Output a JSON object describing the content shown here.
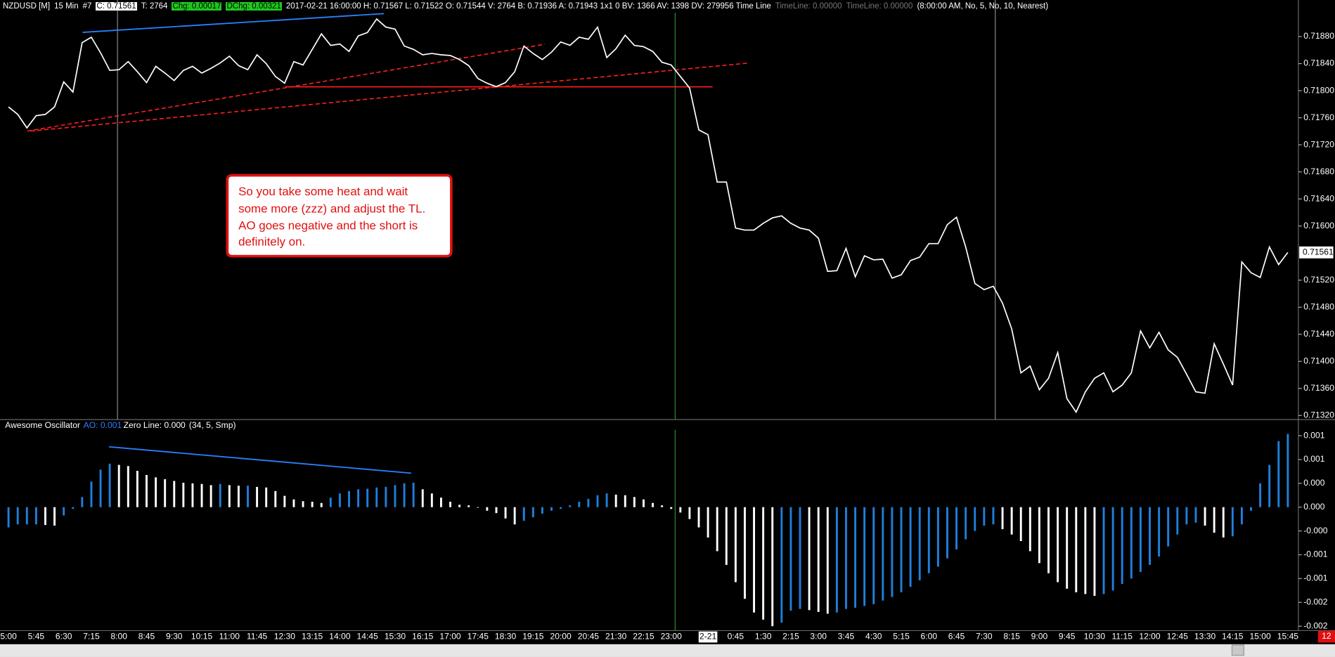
{
  "header": [
    "NZDUSD [M]",
    "15 Min",
    "#7",
    "C: 0.71561",
    "T: 2764",
    "Chg: 0.00017",
    "DChg: 0.00321",
    "2017-02-21 16:00:00 H: 0.71567 L: 0.71522 O: 0.71544 V: 2764 B: 0.71936 A: 0.71943 1x1 0 BV: 1366 AV: 1398 DV: 279956 Time Line",
    "TimeLine: 0.00000",
    "TimeLine: 0.00000",
    "(8:00:00 AM, No, 5, No, 10, Nearest)"
  ],
  "annotation": {
    "lines": [
      "So you take some heat and wait",
      "some more (zzz) and adjust the TL.",
      "AO goes negative and the short is",
      "definitely on."
    ]
  },
  "corner_label": "12",
  "chart_data": [
    {
      "type": "line",
      "color": "#ffffff",
      "categories": [
        "5:00",
        null,
        null,
        "5:45",
        null,
        null,
        "6:30",
        null,
        null,
        "7:15",
        null,
        null,
        "8:00",
        null,
        null,
        "8:45",
        null,
        null,
        "9:30",
        null,
        null,
        "10:15",
        null,
        null,
        "11:00",
        null,
        null,
        "11:45",
        null,
        null,
        "12:30",
        null,
        null,
        "13:15",
        null,
        null,
        "14:00",
        null,
        null,
        "14:45",
        null,
        null,
        "15:30",
        null,
        null,
        "16:15",
        null,
        null,
        "17:00",
        null,
        null,
        "17:45",
        null,
        null,
        "18:30",
        null,
        null,
        "19:15",
        null,
        null,
        "20:00",
        null,
        null,
        "20:45",
        null,
        null,
        "21:30",
        null,
        null,
        "22:15",
        null,
        null,
        "23:00",
        null,
        null,
        null,
        "2-21",
        null,
        null,
        "0:45",
        null,
        null,
        "1:30",
        null,
        null,
        "2:15",
        null,
        null,
        "3:00",
        null,
        null,
        "3:45",
        null,
        null,
        "4:30",
        null,
        null,
        "5:15",
        null,
        null,
        "6:00",
        null,
        null,
        "6:45",
        null,
        null,
        "7:30",
        null,
        null,
        "8:15",
        null,
        null,
        "9:00",
        null,
        null,
        "9:45",
        null,
        null,
        "10:30",
        null,
        null,
        "11:15",
        null,
        null,
        "12:00",
        null,
        null,
        "12:45",
        null,
        null,
        "13:30",
        null,
        null,
        "14:15",
        null,
        null,
        "15:00",
        null,
        null,
        "15:45"
      ],
      "values": [
        0.71776,
        0.71765,
        0.71745,
        0.71763,
        0.71765,
        0.71776,
        0.71813,
        0.71798,
        0.71871,
        0.71879,
        0.71856,
        0.7183,
        0.71831,
        0.71843,
        0.71828,
        0.71812,
        0.71836,
        0.71826,
        0.71815,
        0.7183,
        0.71836,
        0.71826,
        0.71833,
        0.71841,
        0.71851,
        0.71837,
        0.71831,
        0.71853,
        0.7184,
        0.71821,
        0.71811,
        0.71843,
        0.71838,
        0.71861,
        0.71884,
        0.71867,
        0.71869,
        0.71858,
        0.71881,
        0.71886,
        0.71906,
        0.71894,
        0.71891,
        0.71866,
        0.71861,
        0.71853,
        0.71855,
        0.71853,
        0.71852,
        0.71846,
        0.71837,
        0.71818,
        0.71811,
        0.71806,
        0.71812,
        0.71828,
        0.71866,
        0.71855,
        0.71846,
        0.71857,
        0.71872,
        0.71867,
        0.71879,
        0.71876,
        0.71894,
        0.71849,
        0.71862,
        0.71882,
        0.71867,
        0.71865,
        0.71858,
        0.71842,
        0.71838,
        0.71821,
        0.71804,
        0.71742,
        0.71735,
        0.71665,
        0.71665,
        0.71597,
        0.71594,
        0.71594,
        0.71604,
        0.71612,
        0.71615,
        0.71604,
        0.71597,
        0.71594,
        0.71582,
        0.71533,
        0.71534,
        0.71567,
        0.71525,
        0.71556,
        0.7155,
        0.71551,
        0.71523,
        0.71528,
        0.71549,
        0.71554,
        0.71574,
        0.71574,
        0.71602,
        0.71613,
        0.71569,
        0.71515,
        0.71506,
        0.71511,
        0.71486,
        0.71448,
        0.71383,
        0.71393,
        0.71358,
        0.71375,
        0.71413,
        0.71345,
        0.71325,
        0.71355,
        0.71375,
        0.71383,
        0.71355,
        0.71365,
        0.71383,
        0.71445,
        0.7142,
        0.71443,
        0.71417,
        0.71406,
        0.71381,
        0.71355,
        0.71353,
        0.71426,
        0.71396,
        0.71365,
        0.71547,
        0.71531,
        0.71524,
        0.71569,
        0.71543,
        0.71561
      ],
      "ylim": [
        0.71314,
        0.71934
      ],
      "yticks": [
        {
          "value": 0.7188,
          "label": "0.71880"
        },
        {
          "value": 0.7184,
          "label": "0.71840"
        },
        {
          "value": 0.718,
          "label": "0.71800"
        },
        {
          "value": 0.7176,
          "label": "0.71760"
        },
        {
          "value": 0.7172,
          "label": "0.71720"
        },
        {
          "value": 0.7168,
          "label": "0.71680"
        },
        {
          "value": 0.7164,
          "label": "0.71640"
        },
        {
          "value": 0.716,
          "label": "0.71600"
        },
        {
          "value": 0.7152,
          "label": "0.71520"
        },
        {
          "value": 0.7148,
          "label": "0.71480"
        },
        {
          "value": 0.7144,
          "label": "0.71440"
        },
        {
          "value": 0.714,
          "label": "0.71400"
        },
        {
          "value": 0.7136,
          "label": "0.71360"
        },
        {
          "value": 0.7132,
          "label": "0.71320"
        }
      ]
    },
    {
      "type": "bar",
      "up_color": "#1e80dc",
      "down_color": "#ffffff",
      "legend_text": [
        "Awesome Oscillator",
        "AO: 0.001",
        "Zero Line: 0.000",
        "(34, 5, Smp)"
      ],
      "values": [
        -0.00034,
        -0.00029,
        -0.00029,
        -0.00029,
        -0.0003,
        -0.00031,
        -0.00014,
        -3e-05,
        0.00017,
        0.00043,
        0.00063,
        0.00073,
        0.00071,
        0.00069,
        0.00061,
        0.00054,
        0.0005,
        0.00047,
        0.00044,
        0.00041,
        0.0004,
        0.00039,
        0.00037,
        0.00039,
        0.00037,
        0.00036,
        0.00036,
        0.00034,
        0.00033,
        0.00027,
        0.00019,
        0.00013,
        0.0001,
        9e-05,
        7e-05,
        0.00016,
        0.00023,
        0.00027,
        0.0003,
        0.00031,
        0.00033,
        0.00034,
        0.00037,
        0.0004,
        0.00041,
        0.0003,
        0.00023,
        0.00016,
        9e-05,
        4e-05,
        3e-05,
        -1e-05,
        -6e-05,
        -0.0001,
        -0.00019,
        -0.00029,
        -0.00023,
        -0.00017,
        -0.00011,
        -6e-05,
        -3e-05,
        3e-05,
        9e-05,
        0.00014,
        0.0002,
        0.00023,
        0.00021,
        0.0002,
        0.00017,
        0.00013,
        7e-05,
        3e-05,
        -3e-05,
        -9e-05,
        -0.0002,
        -0.00034,
        -0.00051,
        -0.00074,
        -0.00097,
        -0.00126,
        -0.00154,
        -0.00177,
        -0.00189,
        -0.002,
        -0.00194,
        -0.00174,
        -0.00171,
        -0.00173,
        -0.00176,
        -0.00179,
        -0.00177,
        -0.00171,
        -0.00169,
        -0.00166,
        -0.00163,
        -0.00157,
        -0.00151,
        -0.00143,
        -0.00134,
        -0.00123,
        -0.00111,
        -0.001,
        -0.00086,
        -0.00071,
        -0.00054,
        -0.0004,
        -0.00031,
        -0.00029,
        -0.00037,
        -0.00046,
        -0.00057,
        -0.00074,
        -0.00094,
        -0.00111,
        -0.00126,
        -0.00137,
        -0.00143,
        -0.00146,
        -0.00149,
        -0.00146,
        -0.0014,
        -0.00129,
        -0.0012,
        -0.00109,
        -0.00097,
        -0.00083,
        -0.00066,
        -0.00046,
        -0.00029,
        -0.00026,
        -0.00031,
        -0.00043,
        -0.00051,
        -0.00049,
        -0.00029,
        -6e-05,
        0.0004,
        0.00071,
        0.00111,
        0.00123
      ],
      "ylim": [
        -0.00206,
        0.0013
      ],
      "yticks": [
        {
          "value": 0.0012,
          "label": "0.001"
        },
        {
          "value": 0.0008,
          "label": "0.001"
        },
        {
          "value": 0.0004,
          "label": "0.000"
        },
        {
          "value": 0,
          "label": "0.000"
        },
        {
          "value": -0.0004,
          "label": "-0.000"
        },
        {
          "value": -0.0008,
          "label": "-0.001"
        },
        {
          "value": -0.0012,
          "label": "-0.001"
        },
        {
          "value": -0.0016,
          "label": "-0.002"
        },
        {
          "value": -0.002,
          "label": "-0.002"
        }
      ]
    }
  ]
}
